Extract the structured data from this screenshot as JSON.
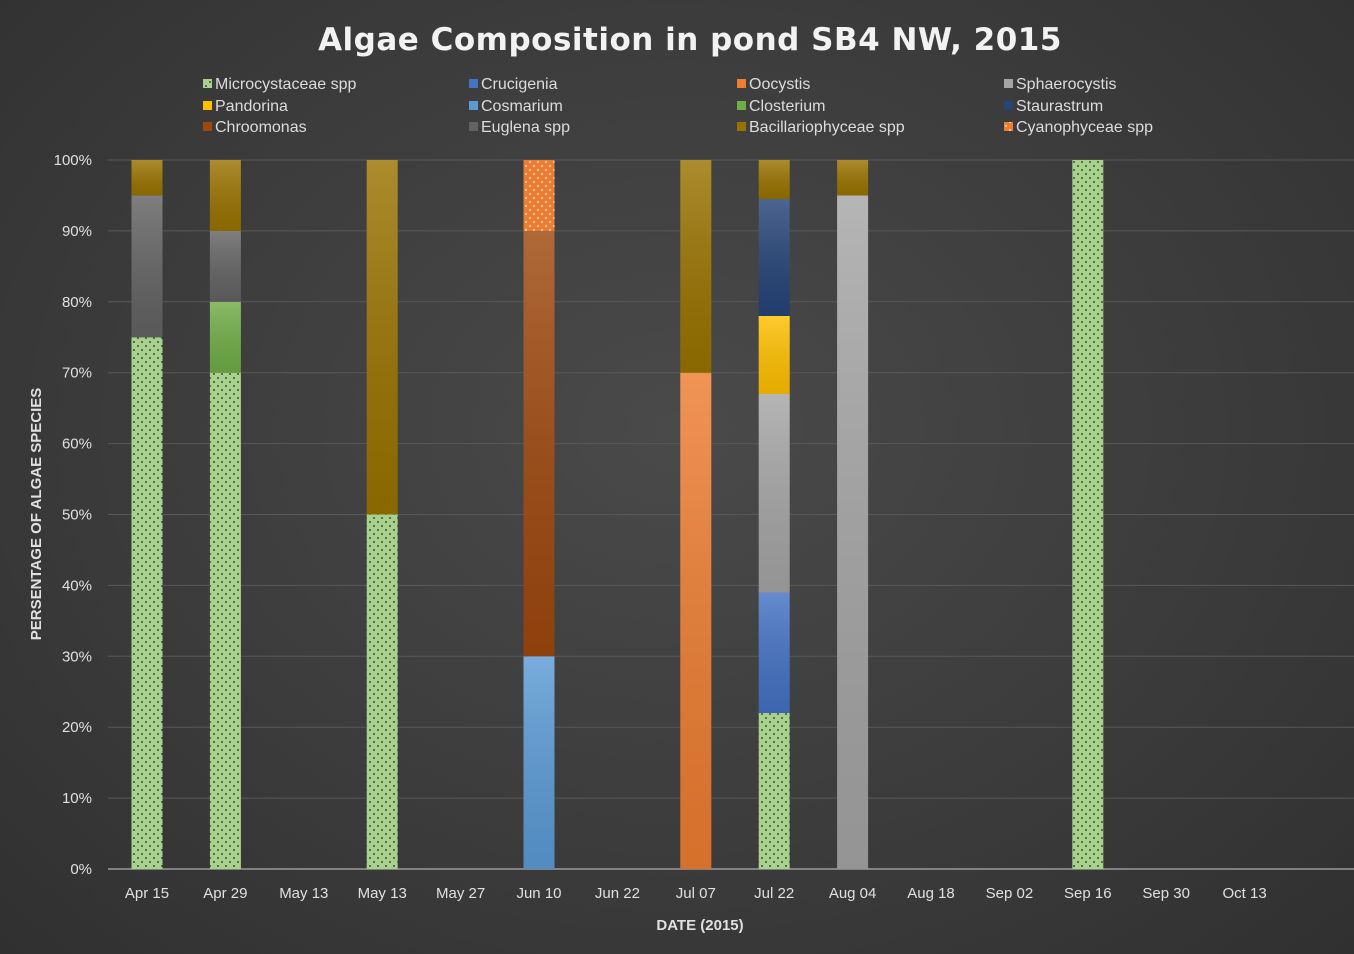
{
  "chart_data": {
    "type": "bar",
    "stacked": true,
    "title": "Algae Composition in pond SB4 NW, 2015",
    "xlabel": "DATE (2015)",
    "ylabel": "PERSENTAGE OF ALGAE SPECIES",
    "ylim": [
      0,
      100
    ],
    "yticks": [
      "0%",
      "10%",
      "20%",
      "30%",
      "40%",
      "50%",
      "60%",
      "70%",
      "80%",
      "90%",
      "100%"
    ],
    "grid": true,
    "legend_position": "top",
    "categories": [
      "Apr 15",
      "Apr 29",
      "May 13",
      "May 13",
      "May 27",
      "Jun 10",
      "Jun 22",
      "Jul 07",
      "Jul 22",
      "Aug 04",
      "Aug 18",
      "Sep 02",
      "Sep 16",
      "Sep 30",
      "Oct 13"
    ],
    "series": [
      {
        "name": "Microcystaceae spp",
        "color": "#a9d18e",
        "pattern": "dots-dark",
        "values": [
          75,
          70,
          0,
          50,
          0,
          0,
          0,
          0,
          22,
          0,
          0,
          0,
          100,
          0,
          0
        ]
      },
      {
        "name": "Cosmarium",
        "color": "#5b9bd5",
        "values": [
          0,
          0,
          0,
          0,
          0,
          30,
          0,
          0,
          0,
          0,
          0,
          0,
          0,
          0,
          0
        ]
      },
      {
        "name": "Oocystis",
        "color": "#ed7d31",
        "values": [
          0,
          0,
          0,
          0,
          0,
          0,
          0,
          70,
          0,
          0,
          0,
          0,
          0,
          0,
          0
        ]
      },
      {
        "name": "Crucigenia",
        "color": "#4472c4",
        "values": [
          0,
          0,
          0,
          0,
          0,
          0,
          0,
          0,
          17,
          0,
          0,
          0,
          0,
          0,
          0
        ]
      },
      {
        "name": "Sphaerocystis",
        "color": "#a5a5a5",
        "values": [
          0,
          0,
          0,
          0,
          0,
          0,
          0,
          0,
          28,
          95,
          0,
          0,
          0,
          0,
          0
        ]
      },
      {
        "name": "Pandorina",
        "color": "#ffc000",
        "values": [
          0,
          0,
          0,
          0,
          0,
          0,
          0,
          0,
          11,
          0,
          0,
          0,
          0,
          0,
          0
        ]
      },
      {
        "name": "Staurastrum",
        "color": "#264478",
        "values": [
          0,
          0,
          0,
          0,
          0,
          0,
          0,
          0,
          16.5,
          0,
          0,
          0,
          0,
          0,
          0
        ]
      },
      {
        "name": "Closterium",
        "color": "#70ad47",
        "values": [
          0,
          10,
          0,
          0,
          0,
          0,
          0,
          0,
          0,
          0,
          0,
          0,
          0,
          0,
          0
        ]
      },
      {
        "name": "Chroomonas",
        "color": "#9e480e",
        "values": [
          0,
          0,
          0,
          0,
          0,
          60,
          0,
          0,
          0,
          0,
          0,
          0,
          0,
          0,
          0
        ]
      },
      {
        "name": "Euglena spp",
        "color": "#636363",
        "values": [
          20,
          10,
          0,
          0,
          0,
          0,
          0,
          0,
          0,
          0,
          0,
          0,
          0,
          0,
          0
        ]
      },
      {
        "name": "Bacillariophyceae spp",
        "color": "#997300",
        "values": [
          5,
          10,
          0,
          50,
          0,
          0,
          0,
          30,
          5.5,
          5,
          0,
          0,
          0,
          0,
          0
        ]
      },
      {
        "name": "Cyanophyceae spp",
        "color": "#ed7d31",
        "pattern": "dots-light",
        "values": [
          0,
          0,
          0,
          0,
          0,
          10,
          0,
          0,
          0,
          0,
          0,
          0,
          0,
          0,
          0
        ]
      }
    ],
    "legend_order": [
      "Microcystaceae spp",
      "Crucigenia",
      "Oocystis",
      "Sphaerocystis",
      "Pandorina",
      "Cosmarium",
      "Closterium",
      "Staurastrum",
      "Chroomonas",
      "Euglena spp",
      "Bacillariophyceae spp",
      "Cyanophyceae spp"
    ]
  }
}
